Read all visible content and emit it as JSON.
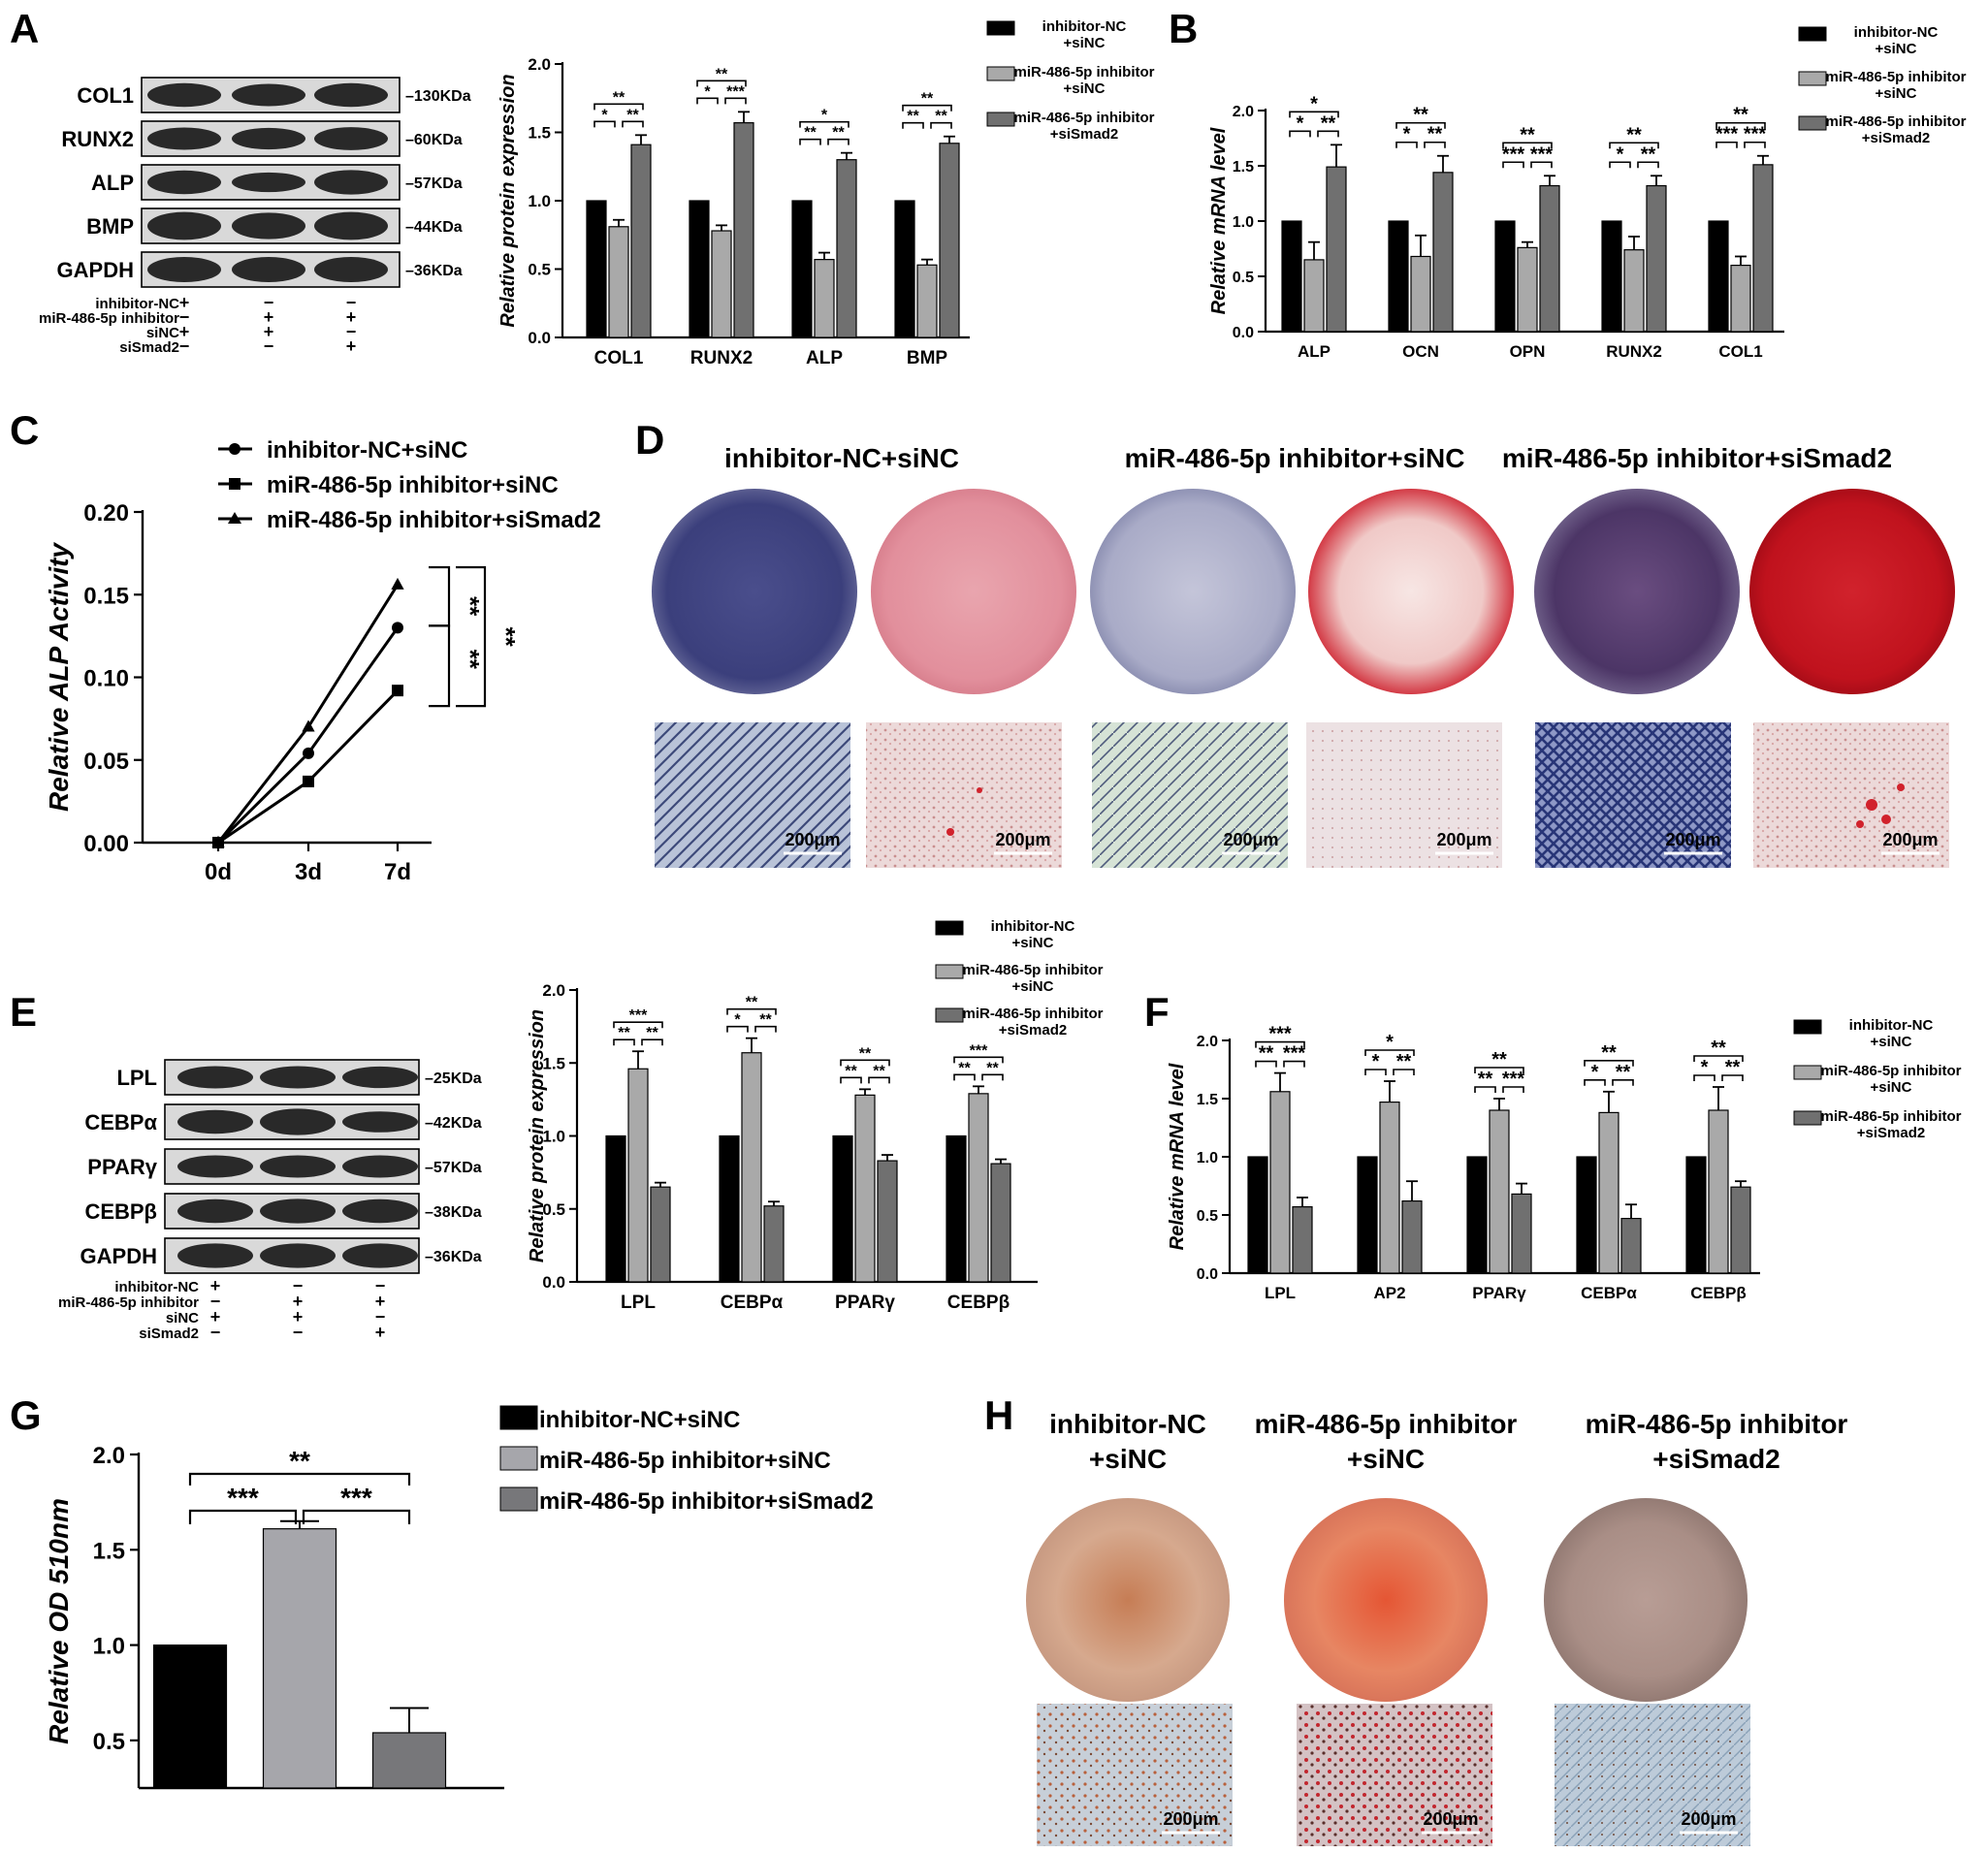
{
  "panels": {
    "A": {
      "letter": "A"
    },
    "B": {
      "letter": "B"
    },
    "C": {
      "letter": "C"
    },
    "D": {
      "letter": "D"
    },
    "E": {
      "letter": "E"
    },
    "F": {
      "letter": "F"
    },
    "G": {
      "letter": "G"
    },
    "H": {
      "letter": "H"
    }
  },
  "colors": {
    "black": "#000000",
    "light_gray": "#a9a9a9",
    "dark_gray": "#707070",
    "light_gray_G": "#a6a6ab",
    "dark_gray_G": "#77777a"
  },
  "blots": {
    "A": {
      "proteins": [
        {
          "name": "COL1",
          "size": "130KDa"
        },
        {
          "name": "RUNX2",
          "size": "60KDa"
        },
        {
          "name": "ALP",
          "size": "57KDa"
        },
        {
          "name": "BMP",
          "size": "44KDa"
        },
        {
          "name": "GAPDH",
          "size": "36KDa"
        }
      ],
      "conditions": [
        {
          "label": "inhibitor-NC",
          "signs": [
            "+",
            "−",
            "−"
          ]
        },
        {
          "label": "miR-486-5p inhibitor",
          "signs": [
            "−",
            "+",
            "+"
          ]
        },
        {
          "label": "siNC",
          "signs": [
            "+",
            "+",
            "−"
          ]
        },
        {
          "label": "siSmad2",
          "signs": [
            "−",
            "−",
            "+"
          ]
        }
      ]
    },
    "E": {
      "proteins": [
        {
          "name": "LPL",
          "size": "25KDa"
        },
        {
          "name": "CEBPα",
          "size": "42KDa"
        },
        {
          "name": "PPARγ",
          "size": "57KDa"
        },
        {
          "name": "CEBPβ",
          "size": "38KDa"
        },
        {
          "name": "GAPDH",
          "size": "36KDa"
        }
      ],
      "conditions": [
        {
          "label": "inhibitor-NC",
          "signs": [
            "+",
            "−",
            "−"
          ]
        },
        {
          "label": "miR-486-5p inhibitor",
          "signs": [
            "−",
            "+",
            "+"
          ]
        },
        {
          "label": "siNC",
          "signs": [
            "+",
            "+",
            "−"
          ]
        },
        {
          "label": "siSmad2",
          "signs": [
            "−",
            "−",
            "+"
          ]
        }
      ]
    }
  },
  "legends": {
    "two_line": [
      {
        "l1": "inhibitor-NC",
        "l2": "+siNC"
      },
      {
        "l1": "miR-486-5p inhibitor",
        "l2": "+siNC"
      },
      {
        "l1": "miR-486-5p inhibitor",
        "l2": "+siSmad2"
      }
    ],
    "one_line": [
      "inhibitor-NC+siNC",
      "miR-486-5p inhibitor+siNC",
      "miR-486-5p inhibitor+siSmad2"
    ]
  },
  "images": {
    "D": {
      "titles": [
        "inhibitor-NC+siNC",
        "miR-486-5p inhibitor+siNC",
        "miR-486-5p inhibitor+siSmad2"
      ],
      "scale": "200μm"
    },
    "H": {
      "titles": [
        {
          "l1": "inhibitor-NC",
          "l2": "+siNC"
        },
        {
          "l1": "miR-486-5p inhibitor",
          "l2": "+siNC"
        },
        {
          "l1": "miR-486-5p inhibitor",
          "l2": "+siSmad2"
        }
      ],
      "scale": "200μm"
    }
  },
  "chart_data": [
    {
      "panel": "A",
      "type": "bar",
      "ylabel": "Relative protein expression",
      "ylim": [
        0,
        2.0
      ],
      "yticks": [
        "0.0",
        "0.5",
        "1.0",
        "1.5",
        "2.0"
      ],
      "categories": [
        "COL1",
        "RUNX2",
        "ALP",
        "BMP"
      ],
      "series": [
        {
          "values": [
            1.0,
            1.0,
            1.0,
            1.0
          ],
          "errors": [
            0,
            0,
            0,
            0
          ]
        },
        {
          "values": [
            0.81,
            0.78,
            0.57,
            0.53
          ],
          "errors": [
            0.05,
            0.04,
            0.05,
            0.04
          ]
        },
        {
          "values": [
            1.41,
            1.57,
            1.3,
            1.42
          ],
          "errors": [
            0.07,
            0.08,
            0.05,
            0.05
          ]
        }
      ],
      "sig": [
        {
          "c": 0,
          "pair": [
            0,
            1
          ],
          "label": "*"
        },
        {
          "c": 0,
          "pair": [
            1,
            2
          ],
          "label": "**"
        },
        {
          "c": 0,
          "pair": [
            0,
            2
          ],
          "label": "**"
        },
        {
          "c": 1,
          "pair": [
            0,
            1
          ],
          "label": "*"
        },
        {
          "c": 1,
          "pair": [
            1,
            2
          ],
          "label": "***"
        },
        {
          "c": 1,
          "pair": [
            0,
            2
          ],
          "label": "**"
        },
        {
          "c": 2,
          "pair": [
            0,
            1
          ],
          "label": "**"
        },
        {
          "c": 2,
          "pair": [
            1,
            2
          ],
          "label": "**"
        },
        {
          "c": 2,
          "pair": [
            0,
            2
          ],
          "label": "*"
        },
        {
          "c": 3,
          "pair": [
            0,
            1
          ],
          "label": "**"
        },
        {
          "c": 3,
          "pair": [
            1,
            2
          ],
          "label": "**"
        },
        {
          "c": 3,
          "pair": [
            0,
            2
          ],
          "label": "**"
        }
      ]
    },
    {
      "panel": "B",
      "type": "bar",
      "ylabel": "Relative mRNA level",
      "ylim": [
        0,
        2.0
      ],
      "yticks": [
        "0.0",
        "0.5",
        "1.0",
        "1.5",
        "2.0"
      ],
      "categories": [
        "ALP",
        "OCN",
        "OPN",
        "RUNX2",
        "COL1"
      ],
      "series": [
        {
          "values": [
            1.0,
            1.0,
            1.0,
            1.0,
            1.0
          ],
          "errors": [
            0,
            0,
            0,
            0,
            0
          ]
        },
        {
          "values": [
            0.65,
            0.68,
            0.76,
            0.74,
            0.6
          ],
          "errors": [
            0.16,
            0.19,
            0.05,
            0.12,
            0.08
          ]
        },
        {
          "values": [
            1.49,
            1.44,
            1.32,
            1.32,
            1.51
          ],
          "errors": [
            0.2,
            0.15,
            0.09,
            0.09,
            0.08
          ]
        }
      ],
      "sig": [
        {
          "c": 0,
          "pair": [
            0,
            1
          ],
          "label": "*"
        },
        {
          "c": 0,
          "pair": [
            1,
            2
          ],
          "label": "**"
        },
        {
          "c": 0,
          "pair": [
            0,
            2
          ],
          "label": "*"
        },
        {
          "c": 1,
          "pair": [
            0,
            1
          ],
          "label": "*"
        },
        {
          "c": 1,
          "pair": [
            1,
            2
          ],
          "label": "**"
        },
        {
          "c": 1,
          "pair": [
            0,
            2
          ],
          "label": "**"
        },
        {
          "c": 2,
          "pair": [
            0,
            1
          ],
          "label": "***"
        },
        {
          "c": 2,
          "pair": [
            1,
            2
          ],
          "label": "***"
        },
        {
          "c": 2,
          "pair": [
            0,
            2
          ],
          "label": "**"
        },
        {
          "c": 3,
          "pair": [
            0,
            1
          ],
          "label": "*"
        },
        {
          "c": 3,
          "pair": [
            1,
            2
          ],
          "label": "**"
        },
        {
          "c": 3,
          "pair": [
            0,
            2
          ],
          "label": "**"
        },
        {
          "c": 4,
          "pair": [
            0,
            1
          ],
          "label": "***"
        },
        {
          "c": 4,
          "pair": [
            1,
            2
          ],
          "label": "***"
        },
        {
          "c": 4,
          "pair": [
            0,
            2
          ],
          "label": "**"
        }
      ]
    },
    {
      "panel": "C",
      "type": "line",
      "ylabel": "Relative ALP Activity",
      "ylim": [
        0,
        0.2
      ],
      "yticks": [
        "0.00",
        "0.05",
        "0.10",
        "0.15",
        "0.20"
      ],
      "categories": [
        "0d",
        "3d",
        "7d"
      ],
      "series": [
        {
          "name": "inhibitor-NC+siNC",
          "marker": "circle",
          "values": [
            0.0,
            0.054,
            0.13
          ]
        },
        {
          "name": "miR-486-5p inhibitor+siNC",
          "marker": "square",
          "values": [
            0.0,
            0.037,
            0.092
          ]
        },
        {
          "name": "miR-486-5p inhibitor+siSmad2",
          "marker": "triangle",
          "values": [
            0.0,
            0.07,
            0.156
          ]
        }
      ],
      "sig": [
        {
          "pair": [
            0,
            2
          ],
          "label": "**"
        },
        {
          "pair": [
            0,
            1
          ],
          "label": "**"
        },
        {
          "pair": [
            1,
            2
          ],
          "label": "**"
        }
      ]
    },
    {
      "panel": "E",
      "type": "bar",
      "ylabel": "Relative protein expression",
      "ylim": [
        0,
        2.0
      ],
      "yticks": [
        "0.0",
        "0.5",
        "1.0",
        "1.5",
        "2.0"
      ],
      "categories": [
        "LPL",
        "CEBPα",
        "PPARγ",
        "CEBPβ"
      ],
      "series": [
        {
          "values": [
            1.0,
            1.0,
            1.0,
            1.0
          ],
          "errors": [
            0,
            0,
            0,
            0
          ]
        },
        {
          "values": [
            1.46,
            1.57,
            1.28,
            1.29
          ],
          "errors": [
            0.12,
            0.1,
            0.04,
            0.05
          ]
        },
        {
          "values": [
            0.65,
            0.52,
            0.83,
            0.81
          ],
          "errors": [
            0.03,
            0.03,
            0.04,
            0.03
          ]
        }
      ],
      "sig": [
        {
          "c": 0,
          "pair": [
            0,
            1
          ],
          "label": "**"
        },
        {
          "c": 0,
          "pair": [
            1,
            2
          ],
          "label": "**"
        },
        {
          "c": 0,
          "pair": [
            0,
            2
          ],
          "label": "***"
        },
        {
          "c": 1,
          "pair": [
            0,
            1
          ],
          "label": "*"
        },
        {
          "c": 1,
          "pair": [
            1,
            2
          ],
          "label": "**"
        },
        {
          "c": 1,
          "pair": [
            0,
            2
          ],
          "label": "**"
        },
        {
          "c": 2,
          "pair": [
            0,
            1
          ],
          "label": "**"
        },
        {
          "c": 2,
          "pair": [
            1,
            2
          ],
          "label": "**"
        },
        {
          "c": 2,
          "pair": [
            0,
            2
          ],
          "label": "**"
        },
        {
          "c": 3,
          "pair": [
            0,
            1
          ],
          "label": "**"
        },
        {
          "c": 3,
          "pair": [
            1,
            2
          ],
          "label": "**"
        },
        {
          "c": 3,
          "pair": [
            0,
            2
          ],
          "label": "***"
        }
      ]
    },
    {
      "panel": "F",
      "type": "bar",
      "ylabel": "Relative mRNA level",
      "ylim": [
        0,
        2.0
      ],
      "yticks": [
        "0.0",
        "0.5",
        "1.0",
        "1.5",
        "2.0"
      ],
      "categories": [
        "LPL",
        "AP2",
        "PPARγ",
        "CEBPα",
        "CEBPβ"
      ],
      "series": [
        {
          "values": [
            1.0,
            1.0,
            1.0,
            1.0,
            1.0
          ],
          "errors": [
            0,
            0,
            0,
            0,
            0
          ]
        },
        {
          "values": [
            1.56,
            1.47,
            1.4,
            1.38,
            1.4
          ],
          "errors": [
            0.16,
            0.18,
            0.1,
            0.18,
            0.2
          ]
        },
        {
          "values": [
            0.57,
            0.62,
            0.68,
            0.47,
            0.74
          ],
          "errors": [
            0.08,
            0.17,
            0.09,
            0.12,
            0.05
          ]
        }
      ],
      "sig": [
        {
          "c": 0,
          "pair": [
            0,
            1
          ],
          "label": "**"
        },
        {
          "c": 0,
          "pair": [
            1,
            2
          ],
          "label": "***"
        },
        {
          "c": 0,
          "pair": [
            0,
            2
          ],
          "label": "***"
        },
        {
          "c": 1,
          "pair": [
            0,
            1
          ],
          "label": "*"
        },
        {
          "c": 1,
          "pair": [
            1,
            2
          ],
          "label": "**"
        },
        {
          "c": 1,
          "pair": [
            0,
            2
          ],
          "label": "*"
        },
        {
          "c": 2,
          "pair": [
            0,
            1
          ],
          "label": "**"
        },
        {
          "c": 2,
          "pair": [
            1,
            2
          ],
          "label": "***"
        },
        {
          "c": 2,
          "pair": [
            0,
            2
          ],
          "label": "**"
        },
        {
          "c": 3,
          "pair": [
            0,
            1
          ],
          "label": "*"
        },
        {
          "c": 3,
          "pair": [
            1,
            2
          ],
          "label": "**"
        },
        {
          "c": 3,
          "pair": [
            0,
            2
          ],
          "label": "**"
        },
        {
          "c": 4,
          "pair": [
            0,
            1
          ],
          "label": "*"
        },
        {
          "c": 4,
          "pair": [
            1,
            2
          ],
          "label": "**"
        },
        {
          "c": 4,
          "pair": [
            0,
            2
          ],
          "label": "**"
        }
      ]
    },
    {
      "panel": "G",
      "type": "bar",
      "ylabel": "Relative OD 510nm",
      "ylim": [
        0.25,
        2.0
      ],
      "yticks": [
        "0.5",
        "1.0",
        "1.5",
        "2.0"
      ],
      "categories": [
        "inhibitor-NC+siNC",
        "miR-486-5p inhibitor+siNC",
        "miR-486-5p inhibitor+siSmad2"
      ],
      "series": [
        {
          "values": [
            1.0,
            1.61,
            0.54
          ],
          "errors": [
            0,
            0.04,
            0.13
          ]
        }
      ],
      "sig": [
        {
          "pair": [
            0,
            1
          ],
          "label": "***"
        },
        {
          "pair": [
            1,
            2
          ],
          "label": "***"
        },
        {
          "pair": [
            0,
            2
          ],
          "label": "**"
        }
      ]
    }
  ]
}
